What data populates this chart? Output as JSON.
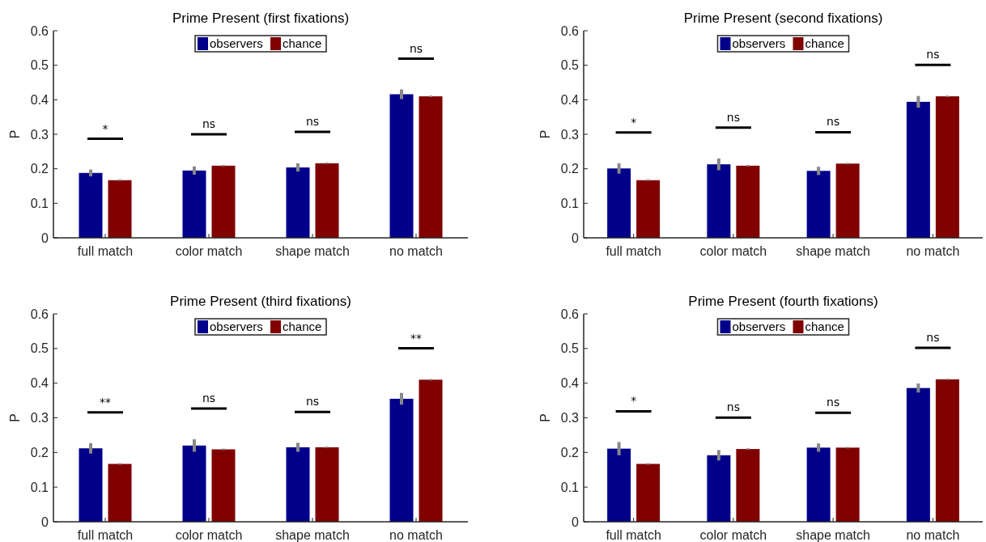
{
  "chart_data": [
    {
      "type": "bar",
      "title": "Prime Present (first fixations)",
      "ylabel": "P",
      "categories": [
        "full match",
        "color match",
        "shape match",
        "no match"
      ],
      "ylim": [
        0,
        0.6
      ],
      "yticks": [
        0,
        0.1,
        0.2,
        0.3,
        0.4,
        0.5,
        0.6
      ],
      "legend": "top",
      "grid": false,
      "series": [
        {
          "name": "observers",
          "color": "#00008b",
          "values": [
            0.188,
            0.195,
            0.204,
            0.416
          ],
          "errors": [
            0.01,
            0.012,
            0.012,
            0.014
          ]
        },
        {
          "name": "chance",
          "color": "#800000",
          "values": [
            0.167,
            0.209,
            0.216,
            0.41
          ],
          "errors": [
            0.002,
            0.002,
            0.002,
            0.002
          ]
        }
      ],
      "annotations": [
        "*",
        "ns",
        "ns",
        "ns"
      ]
    },
    {
      "type": "bar",
      "title": "Prime Present (second fixations)",
      "ylabel": "P",
      "categories": [
        "full match",
        "color match",
        "shape match",
        "no match"
      ],
      "ylim": [
        0,
        0.6
      ],
      "yticks": [
        0,
        0.1,
        0.2,
        0.3,
        0.4,
        0.5,
        0.6
      ],
      "legend": "top",
      "grid": false,
      "series": [
        {
          "name": "observers",
          "color": "#00008b",
          "values": [
            0.201,
            0.213,
            0.194,
            0.394
          ],
          "errors": [
            0.015,
            0.017,
            0.012,
            0.017
          ]
        },
        {
          "name": "chance",
          "color": "#800000",
          "values": [
            0.167,
            0.209,
            0.215,
            0.41
          ],
          "errors": [
            0.002,
            0.002,
            0.002,
            0.002
          ]
        }
      ],
      "annotations": [
        "*",
        "ns",
        "ns",
        "ns"
      ]
    },
    {
      "type": "bar",
      "title": "Prime Present (third fixations)",
      "ylabel": "P",
      "categories": [
        "full match",
        "color match",
        "shape match",
        "no match"
      ],
      "ylim": [
        0,
        0.6
      ],
      "yticks": [
        0,
        0.1,
        0.2,
        0.3,
        0.4,
        0.5,
        0.6
      ],
      "legend": "top",
      "grid": false,
      "series": [
        {
          "name": "observers",
          "color": "#00008b",
          "values": [
            0.212,
            0.22,
            0.215,
            0.355
          ],
          "errors": [
            0.015,
            0.018,
            0.013,
            0.017
          ]
        },
        {
          "name": "chance",
          "color": "#800000",
          "values": [
            0.167,
            0.209,
            0.215,
            0.41
          ],
          "errors": [
            0.002,
            0.002,
            0.002,
            0.002
          ]
        }
      ],
      "annotations": [
        "**",
        "ns",
        "ns",
        "**"
      ]
    },
    {
      "type": "bar",
      "title": "Prime Present (fourth fixations)",
      "ylabel": "P",
      "categories": [
        "full match",
        "color match",
        "shape match",
        "no match"
      ],
      "ylim": [
        0,
        0.6
      ],
      "yticks": [
        0,
        0.1,
        0.2,
        0.3,
        0.4,
        0.5,
        0.6
      ],
      "legend": "top",
      "grid": false,
      "series": [
        {
          "name": "observers",
          "color": "#00008b",
          "values": [
            0.211,
            0.192,
            0.214,
            0.386
          ],
          "errors": [
            0.019,
            0.015,
            0.012,
            0.013
          ]
        },
        {
          "name": "chance",
          "color": "#800000",
          "values": [
            0.167,
            0.21,
            0.214,
            0.411
          ],
          "errors": [
            0.002,
            0.002,
            0.002,
            0.002
          ]
        }
      ],
      "annotations": [
        "*",
        "ns",
        "ns",
        "ns"
      ]
    }
  ]
}
